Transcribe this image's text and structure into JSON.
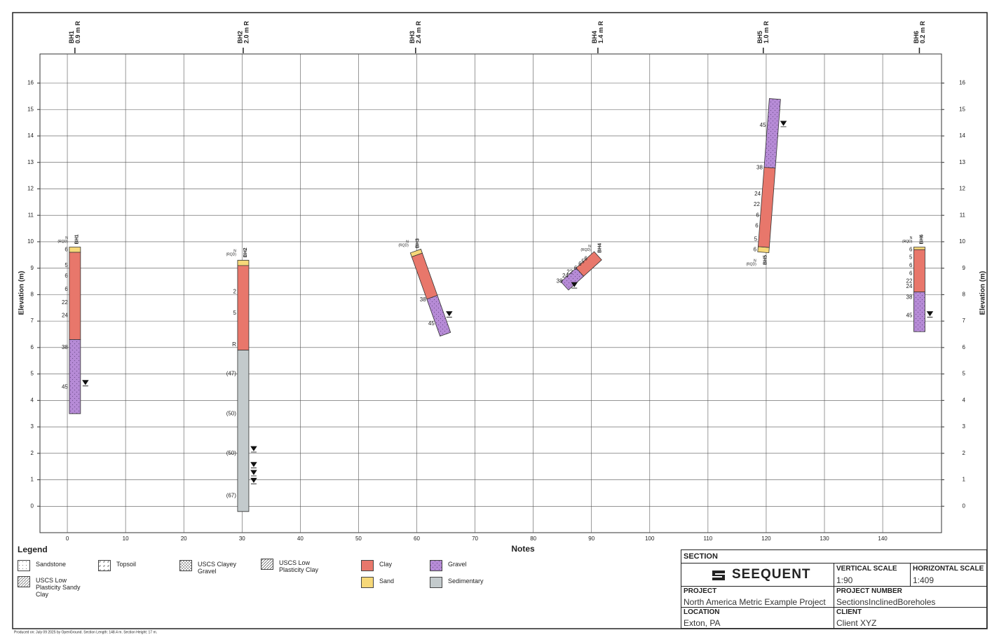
{
  "section": {
    "y_label": "Elevation (m)",
    "x_label": "Notes",
    "xlim": [
      -4.7,
      150.1
    ],
    "ylim": [
      -1,
      17.1
    ],
    "xticks": [
      0,
      10,
      20,
      30,
      40,
      50,
      60,
      70,
      80,
      90,
      100,
      110,
      120,
      130,
      140
    ],
    "yticks": [
      0,
      1,
      2,
      3,
      4,
      5,
      6,
      7,
      8,
      9,
      10,
      11,
      12,
      13,
      14,
      15,
      16
    ],
    "grid": true,
    "spt_header": [
      "N",
      "(RQD)"
    ],
    "boreholes": [
      {
        "name": "BH1",
        "offset": "0.9 m R",
        "x_from": 1.3,
        "x_to": 1.3,
        "layers": [
          {
            "material": "Sand",
            "from": 9.8,
            "to": 9.6
          },
          {
            "material": "Clay",
            "from": 9.6,
            "to": 6.3
          },
          {
            "material": "Gravel",
            "from": 6.3,
            "to": 3.5
          }
        ],
        "spt": [
          {
            "label": "6",
            "elev": 9.7
          },
          {
            "label": "5",
            "elev": 9.1
          },
          {
            "label": "6",
            "elev": 8.7
          },
          {
            "label": "6",
            "elev": 8.2
          },
          {
            "label": "22",
            "elev": 7.7
          },
          {
            "label": "24",
            "elev": 7.2
          },
          {
            "label": "38",
            "elev": 6.0
          },
          {
            "label": "45",
            "elev": 4.5
          }
        ],
        "water": [
          4.6
        ]
      },
      {
        "name": "BH2",
        "offset": "2.0 m R",
        "x_from": 30.2,
        "x_to": 30.2,
        "layers": [
          {
            "material": "Sand",
            "from": 9.3,
            "to": 9.1
          },
          {
            "material": "Clay",
            "from": 9.1,
            "to": 5.9
          },
          {
            "material": "Sedimentary",
            "from": 5.9,
            "to": -0.2
          }
        ],
        "spt": [
          {
            "label": "2",
            "elev": 8.1
          },
          {
            "label": "5",
            "elev": 7.3
          },
          {
            "label": "R",
            "elev": 6.1
          },
          {
            "label": "(47)",
            "elev": 5.0
          },
          {
            "label": "(50)",
            "elev": 3.5
          },
          {
            "label": "(50)",
            "elev": 2.0
          },
          {
            "label": "(67)",
            "elev": 0.4
          }
        ],
        "water": [
          2.1,
          1.5,
          1.2,
          0.9
        ]
      },
      {
        "name": "BH3",
        "offset": "2.4 m R",
        "x_from": 59.8,
        "x_to": 64.9,
        "layers": [
          {
            "material": "Sand",
            "from": 9.65,
            "to": 9.5
          },
          {
            "material": "Clay",
            "from": 9.5,
            "to": 7.9
          },
          {
            "material": "Gravel",
            "from": 7.9,
            "to": 6.5
          }
        ],
        "spt": [
          {
            "label": "38",
            "elev": 7.8
          },
          {
            "label": "45",
            "elev": 6.9
          }
        ],
        "water": [
          7.2
        ]
      },
      {
        "name": "BH4",
        "offset": "1.4 m R",
        "x_from": 91.1,
        "x_to": 85.4,
        "layers": [
          {
            "material": "Clay",
            "from": 9.47,
            "to": 8.85
          },
          {
            "material": "Gravel",
            "from": 8.85,
            "to": 8.33
          }
        ],
        "spt": [
          {
            "label": "6",
            "elev": 9.35
          },
          {
            "label": "5",
            "elev": 9.25
          },
          {
            "label": "6",
            "elev": 9.15
          },
          {
            "label": "6",
            "elev": 9.0
          },
          {
            "label": "22",
            "elev": 8.85
          },
          {
            "label": "24",
            "elev": 8.7
          },
          {
            "label": "38",
            "elev": 8.5
          }
        ],
        "water": [
          8.3
        ]
      },
      {
        "name": "BH5",
        "offset": "1.0 m R",
        "x_from": 119.5,
        "x_to": 121.5,
        "layers": [
          {
            "material": "Sand",
            "from": 9.6,
            "to": 9.8
          },
          {
            "material": "Clay",
            "from": 9.8,
            "to": 12.8
          },
          {
            "material": "Gravel",
            "from": 12.8,
            "to": 15.4
          }
        ],
        "spt": [
          {
            "label": "6",
            "elev": 9.7
          },
          {
            "label": "5",
            "elev": 10.1
          },
          {
            "label": "6",
            "elev": 10.6
          },
          {
            "label": "6",
            "elev": 11.0
          },
          {
            "label": "22",
            "elev": 11.4
          },
          {
            "label": "24",
            "elev": 11.8
          },
          {
            "label": "38",
            "elev": 12.8
          },
          {
            "label": "45",
            "elev": 14.4
          }
        ],
        "water": [
          14.4
        ]
      },
      {
        "name": "BH6",
        "offset": "0.2 m R",
        "x_from": 146.3,
        "x_to": 146.3,
        "layers": [
          {
            "material": "Sand",
            "from": 9.8,
            "to": 9.7
          },
          {
            "material": "Clay",
            "from": 9.7,
            "to": 8.1
          },
          {
            "material": "Gravel",
            "from": 8.1,
            "to": 6.6
          }
        ],
        "spt": [
          {
            "label": "6",
            "elev": 9.7
          },
          {
            "label": "5",
            "elev": 9.4
          },
          {
            "label": "6",
            "elev": 9.1
          },
          {
            "label": "6",
            "elev": 8.8
          },
          {
            "label": "22",
            "elev": 8.5
          },
          {
            "label": "24",
            "elev": 8.3
          },
          {
            "label": "38",
            "elev": 7.9
          },
          {
            "label": "45",
            "elev": 7.2
          }
        ],
        "water": [
          7.2
        ]
      }
    ]
  },
  "legend": {
    "title": "Legend",
    "items": [
      {
        "name": "Sandstone",
        "color": "#ffffff",
        "pattern": "dots"
      },
      {
        "name": "Topsoil",
        "color": "#ffffff",
        "pattern": "topsoil"
      },
      {
        "name": "USCS Clayey Gravel",
        "color": "#ffffff",
        "pattern": "cross"
      },
      {
        "name": "USCS Low Plasticity Clay",
        "color": "#ffffff",
        "pattern": "diag"
      },
      {
        "name": "USCS Low Plasticity Sandy Clay",
        "color": "#ffffff",
        "pattern": "diagdots"
      },
      {
        "name": "Clay",
        "color": "#e8776b",
        "pattern": "solid"
      },
      {
        "name": "Sand",
        "color": "#f6d879",
        "pattern": "solid"
      },
      {
        "name": "Gravel",
        "color": "#b68bd6",
        "pattern": "gravel"
      },
      {
        "name": "Sedimentary",
        "color": "#c3cacc",
        "pattern": "solid"
      }
    ]
  },
  "title_block": {
    "section": "SECTION",
    "logo": "SEEQUENT",
    "vertical_scale_label": "VERTICAL SCALE",
    "vertical_scale": "1:90",
    "horizontal_scale_label": "HORIZONTAL SCALE",
    "horizontal_scale": "1:409",
    "project_label": "PROJECT",
    "project": "North America Metric Example Project",
    "project_number_label": "PROJECT NUMBER",
    "project_number": "SectionsInclinedBoreholes",
    "location_label": "LOCATION",
    "location": "Exton, PA",
    "client_label": "CLIENT",
    "client": "Client XYZ"
  },
  "footer": "Produced on: July 09 2025 by OpenGround. Section Length: 148.4 m. Section Height: 17 m."
}
